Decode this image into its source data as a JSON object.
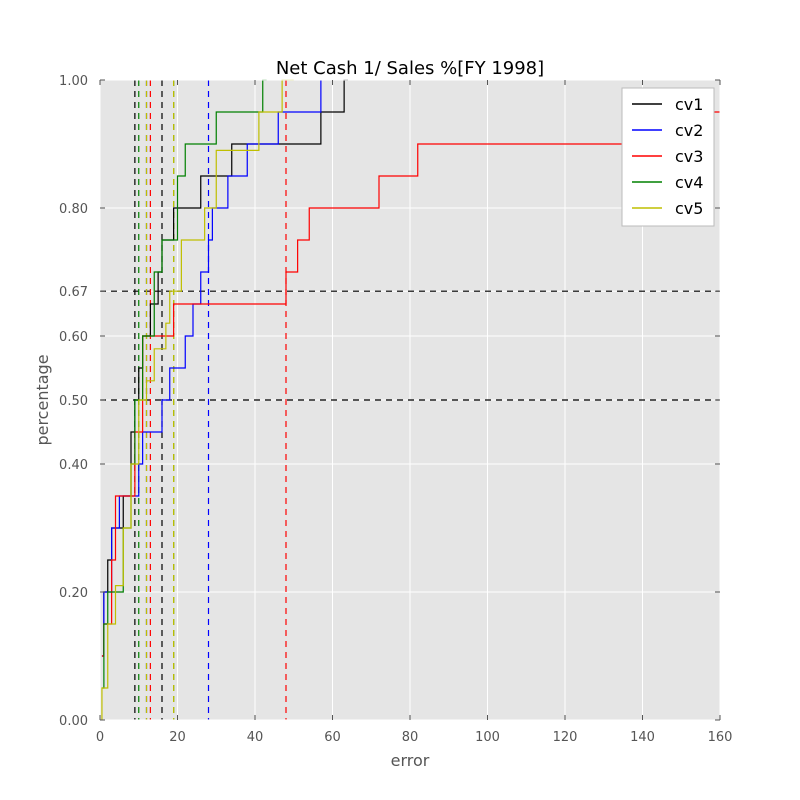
{
  "chart_data": {
    "type": "line",
    "title": "Net Cash 1/ Sales %[FY 1998]",
    "xlabel": "error",
    "ylabel": "percentage",
    "xlim": [
      0,
      160
    ],
    "ylim": [
      0,
      1
    ],
    "x_ticks": [
      "0",
      "20",
      "40",
      "60",
      "80",
      "100",
      "120",
      "140",
      "160"
    ],
    "y_ticks": [
      {
        "value": 0.0,
        "label": "0.00"
      },
      {
        "value": 0.2,
        "label": "0.20"
      },
      {
        "value": 0.4,
        "label": "0.40"
      },
      {
        "value": 0.5,
        "label": "0.50"
      },
      {
        "value": 0.6,
        "label": "0.60"
      },
      {
        "value": 0.67,
        "label": "0.67"
      },
      {
        "value": 0.8,
        "label": "0.80"
      },
      {
        "value": 1.0,
        "label": "1.00"
      }
    ],
    "grid": true,
    "legend_position": "top-right",
    "hlines": [
      0.5,
      0.67
    ],
    "series": [
      {
        "name": "cv1",
        "color": "#000000",
        "vlines": [
          9,
          16
        ],
        "points": [
          [
            0.5,
            0.1
          ],
          [
            1,
            0.1
          ],
          [
            1,
            0.2
          ],
          [
            2,
            0.2
          ],
          [
            2,
            0.25
          ],
          [
            3,
            0.25
          ],
          [
            3,
            0.3
          ],
          [
            6,
            0.3
          ],
          [
            6,
            0.35
          ],
          [
            8,
            0.35
          ],
          [
            8,
            0.45
          ],
          [
            9,
            0.45
          ],
          [
            9,
            0.5
          ],
          [
            10,
            0.5
          ],
          [
            10,
            0.55
          ],
          [
            11,
            0.55
          ],
          [
            11,
            0.6
          ],
          [
            13,
            0.6
          ],
          [
            13,
            0.65
          ],
          [
            15,
            0.65
          ],
          [
            15,
            0.7
          ],
          [
            16,
            0.7
          ],
          [
            16,
            0.75
          ],
          [
            19,
            0.75
          ],
          [
            19,
            0.8
          ],
          [
            26,
            0.8
          ],
          [
            26,
            0.85
          ],
          [
            34,
            0.85
          ],
          [
            34,
            0.9
          ],
          [
            57,
            0.9
          ],
          [
            57,
            0.95
          ],
          [
            63,
            0.95
          ],
          [
            63,
            1.0
          ],
          [
            64,
            1.0
          ]
        ]
      },
      {
        "name": "cv2",
        "color": "#0000ff",
        "vlines": [
          12,
          28
        ],
        "points": [
          [
            0.5,
            0.1
          ],
          [
            1,
            0.1
          ],
          [
            1,
            0.2
          ],
          [
            3,
            0.2
          ],
          [
            3,
            0.3
          ],
          [
            5,
            0.3
          ],
          [
            5,
            0.35
          ],
          [
            10,
            0.35
          ],
          [
            10,
            0.4
          ],
          [
            11,
            0.4
          ],
          [
            11,
            0.45
          ],
          [
            16,
            0.45
          ],
          [
            16,
            0.5
          ],
          [
            18,
            0.5
          ],
          [
            18,
            0.55
          ],
          [
            22,
            0.55
          ],
          [
            22,
            0.6
          ],
          [
            24,
            0.6
          ],
          [
            24,
            0.65
          ],
          [
            26,
            0.65
          ],
          [
            26,
            0.7
          ],
          [
            28,
            0.7
          ],
          [
            28,
            0.75
          ],
          [
            29,
            0.75
          ],
          [
            29,
            0.8
          ],
          [
            33,
            0.8
          ],
          [
            33,
            0.85
          ],
          [
            38,
            0.85
          ],
          [
            38,
            0.9
          ],
          [
            46,
            0.9
          ],
          [
            46,
            0.95
          ],
          [
            57,
            0.95
          ],
          [
            57,
            1.0
          ]
        ]
      },
      {
        "name": "cv3",
        "color": "#ff0000",
        "vlines": [
          13,
          48
        ],
        "points": [
          [
            0.5,
            0.1
          ],
          [
            1,
            0.1
          ],
          [
            1,
            0.15
          ],
          [
            3,
            0.15
          ],
          [
            3,
            0.25
          ],
          [
            4,
            0.25
          ],
          [
            4,
            0.35
          ],
          [
            9,
            0.35
          ],
          [
            9,
            0.45
          ],
          [
            11,
            0.45
          ],
          [
            11,
            0.6
          ],
          [
            19,
            0.6
          ],
          [
            19,
            0.65
          ],
          [
            48,
            0.65
          ],
          [
            48,
            0.7
          ],
          [
            51,
            0.7
          ],
          [
            51,
            0.75
          ],
          [
            54,
            0.75
          ],
          [
            54,
            0.8
          ],
          [
            72,
            0.8
          ],
          [
            72,
            0.85
          ],
          [
            82,
            0.85
          ],
          [
            82,
            0.9
          ],
          [
            150,
            0.9
          ],
          [
            150,
            0.95
          ],
          [
            160,
            0.95
          ]
        ]
      },
      {
        "name": "cv4",
        "color": "#008000",
        "vlines": [
          10,
          19
        ],
        "points": [
          [
            0.5,
            0.05
          ],
          [
            1,
            0.05
          ],
          [
            1,
            0.15
          ],
          [
            2,
            0.15
          ],
          [
            2,
            0.2
          ],
          [
            6,
            0.2
          ],
          [
            6,
            0.3
          ],
          [
            8,
            0.3
          ],
          [
            8,
            0.4
          ],
          [
            9,
            0.4
          ],
          [
            9,
            0.5
          ],
          [
            11,
            0.5
          ],
          [
            11,
            0.6
          ],
          [
            14,
            0.6
          ],
          [
            14,
            0.7
          ],
          [
            16,
            0.7
          ],
          [
            16,
            0.75
          ],
          [
            20,
            0.75
          ],
          [
            20,
            0.85
          ],
          [
            22,
            0.85
          ],
          [
            22,
            0.9
          ],
          [
            30,
            0.9
          ],
          [
            30,
            0.95
          ],
          [
            42,
            0.95
          ],
          [
            42,
            1.0
          ],
          [
            43,
            1.0
          ]
        ]
      },
      {
        "name": "cv5",
        "color": "#bfbf00",
        "vlines": [
          12,
          19
        ],
        "points": [
          [
            0.5,
            0.0
          ],
          [
            0.5,
            0.05
          ],
          [
            2,
            0.05
          ],
          [
            2,
            0.15
          ],
          [
            4,
            0.15
          ],
          [
            4,
            0.21
          ],
          [
            6,
            0.21
          ],
          [
            6,
            0.3
          ],
          [
            8,
            0.3
          ],
          [
            8,
            0.4
          ],
          [
            10,
            0.4
          ],
          [
            10,
            0.5
          ],
          [
            12,
            0.5
          ],
          [
            12,
            0.53
          ],
          [
            14,
            0.53
          ],
          [
            14,
            0.58
          ],
          [
            17,
            0.58
          ],
          [
            17,
            0.62
          ],
          [
            18,
            0.62
          ],
          [
            18,
            0.67
          ],
          [
            21,
            0.67
          ],
          [
            21,
            0.75
          ],
          [
            27,
            0.75
          ],
          [
            27,
            0.8
          ],
          [
            30,
            0.8
          ],
          [
            30,
            0.89
          ],
          [
            41,
            0.89
          ],
          [
            41,
            0.95
          ],
          [
            47,
            0.95
          ],
          [
            47,
            1.0
          ],
          [
            50,
            1.0
          ]
        ]
      }
    ]
  }
}
